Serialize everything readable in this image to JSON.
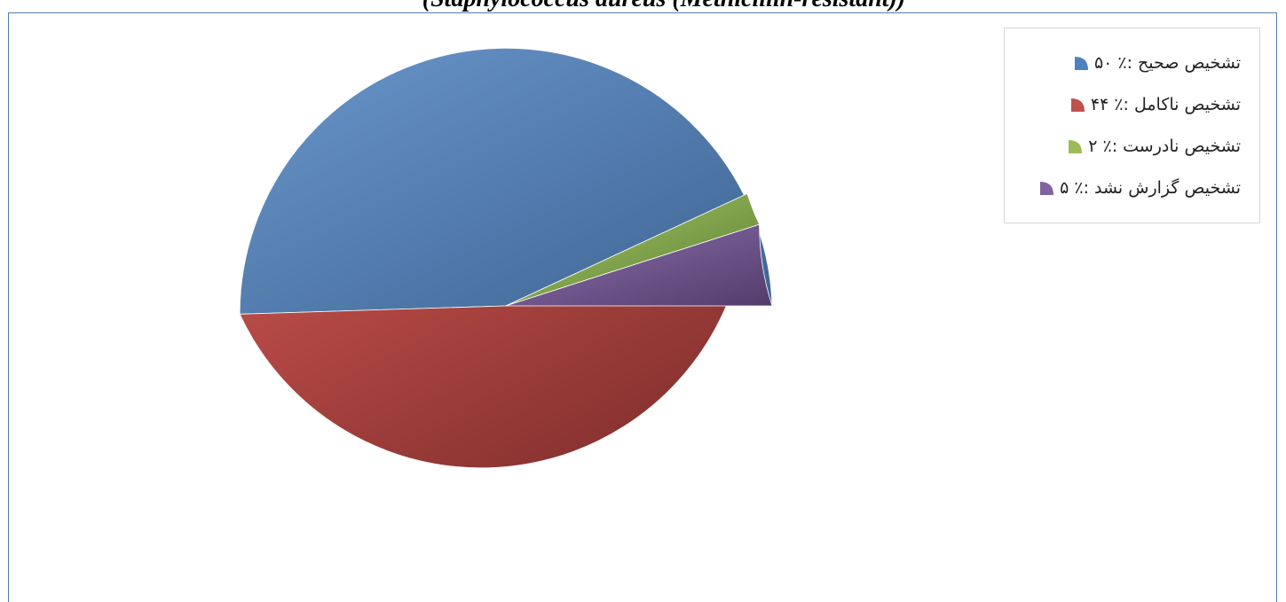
{
  "caption": "(Staphylococcus aureus (Methicillin-resistant))",
  "chart_data": {
    "type": "pie",
    "title": "",
    "slices": [
      {
        "label": "تشخیص صحیح",
        "legend": "تشخیص صحیح :٪ ۵۰",
        "value": 50,
        "color": "#4f81bd"
      },
      {
        "label": "تشخیص ناکامل",
        "legend": "تشخیص ناکامل :٪ ۴۴",
        "value": 44,
        "color": "#c0504d"
      },
      {
        "label": "تشخیص نادرست",
        "legend": "تشخیص نادرست :٪ ۲",
        "value": 2,
        "color": "#9bbb59"
      },
      {
        "label": "تشخیص گزارش نشد",
        "legend": "تشخیص گزارش نشد :٪ ۵",
        "value": 5,
        "color": "#8064a2"
      }
    ],
    "legend_position": "top-right",
    "start_angle_deg": 0,
    "direction": "clockwise"
  }
}
